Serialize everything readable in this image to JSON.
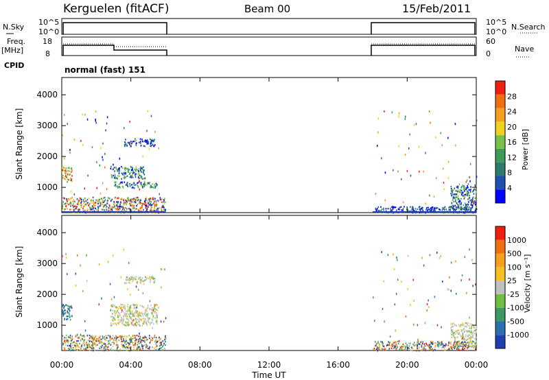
{
  "header": {
    "station": "Kerguelen (fitACF)",
    "beam": "Beam 00",
    "date": "15/Feb/2011"
  },
  "strips": {
    "nsky_label": "N.Sky",
    "nsky_ticks": [
      "10^5",
      "10^0"
    ],
    "nsearch_label": "N.Search",
    "nsearch_ticks": [
      "10^5",
      "10^0"
    ],
    "freq_label": "Freq.",
    "freq_unit": "[MHz]",
    "freq_ticks": [
      "18",
      "8"
    ],
    "nave_label": "Nave",
    "nave_ticks": [
      "60",
      "0"
    ],
    "cpid_label": "CPID",
    "cpid_value": "normal (fast) 151"
  },
  "chart_data": [
    {
      "type": "heatmap",
      "panel": "power",
      "ylabel": "Slant Range [km]",
      "yticks": [
        "4000",
        "3000",
        "2000",
        "1000"
      ],
      "ylim_km": [
        180,
        4560
      ],
      "xlim_hours": [
        0,
        24
      ],
      "colorbar_label": "Power [dB]",
      "colorbar_ticks": [
        "28",
        "24",
        "20",
        "16",
        "12",
        "8",
        "4"
      ],
      "colors": [
        "#0000ff",
        "#1f4fb0",
        "#2e7a6b",
        "#3c9c5a",
        "#79c04a",
        "#f0d020",
        "#f5a020",
        "#f07010",
        "#f02010"
      ],
      "data_intervals_hours": [
        [
          0,
          6
        ],
        [
          18,
          24
        ]
      ],
      "echo_regions": [
        {
          "t0": 0.0,
          "t1": 0.6,
          "r0": 1200,
          "r1": 1700,
          "level": "high"
        },
        {
          "t0": 2.8,
          "t1": 4.8,
          "r0": 1300,
          "r1": 1700,
          "level": "medium"
        },
        {
          "t0": 3.0,
          "t1": 5.5,
          "r0": 1000,
          "r1": 1200,
          "level": "medium"
        },
        {
          "t0": 3.6,
          "t1": 5.4,
          "r0": 2350,
          "r1": 2600,
          "level": "low"
        },
        {
          "t0": 0.0,
          "t1": 6.0,
          "r0": 200,
          "r1": 700,
          "level": "mixed"
        },
        {
          "t0": 22.5,
          "t1": 24.0,
          "r0": 300,
          "r1": 1100,
          "level": "medium"
        },
        {
          "t0": 18.0,
          "t1": 24.0,
          "r0": 200,
          "r1": 400,
          "level": "low"
        }
      ]
    },
    {
      "type": "heatmap",
      "panel": "velocity",
      "ylabel": "Slant Range [km]",
      "yticks": [
        "4000",
        "3000",
        "2000",
        "1000"
      ],
      "ylim_km": [
        180,
        4560
      ],
      "xlim_hours": [
        0,
        24
      ],
      "xticks": [
        "00:00",
        "04:00",
        "08:00",
        "12:00",
        "16:00",
        "20:00",
        "00:00"
      ],
      "xlabel": "Time UT",
      "colorbar_label": "Velocity [m s⁻¹]",
      "colorbar_ticks": [
        "1000",
        "500",
        "100",
        "25",
        "-25",
        "-100",
        "-500",
        "-1000"
      ],
      "colors": [
        "#1f3fb0",
        "#2a6fb0",
        "#3a9a60",
        "#6fc040",
        "#c0c0c0",
        "#f5c020",
        "#f5a020",
        "#f07010",
        "#f02010"
      ],
      "data_intervals_hours": [
        [
          0,
          6
        ],
        [
          18,
          24
        ]
      ],
      "echo_regions": [
        {
          "t0": 0.0,
          "t1": 0.6,
          "r0": 1200,
          "r1": 1700,
          "level": "low"
        },
        {
          "t0": 2.8,
          "t1": 5.5,
          "r0": 1000,
          "r1": 1700,
          "level": "ground"
        },
        {
          "t0": 3.6,
          "t1": 5.4,
          "r0": 2350,
          "r1": 2600,
          "level": "ground"
        },
        {
          "t0": 0.0,
          "t1": 6.0,
          "r0": 200,
          "r1": 700,
          "level": "mixed"
        },
        {
          "t0": 22.5,
          "t1": 24.0,
          "r0": 300,
          "r1": 1100,
          "level": "ground"
        },
        {
          "t0": 18.0,
          "t1": 24.0,
          "r0": 200,
          "r1": 500,
          "level": "mixed"
        }
      ]
    }
  ]
}
